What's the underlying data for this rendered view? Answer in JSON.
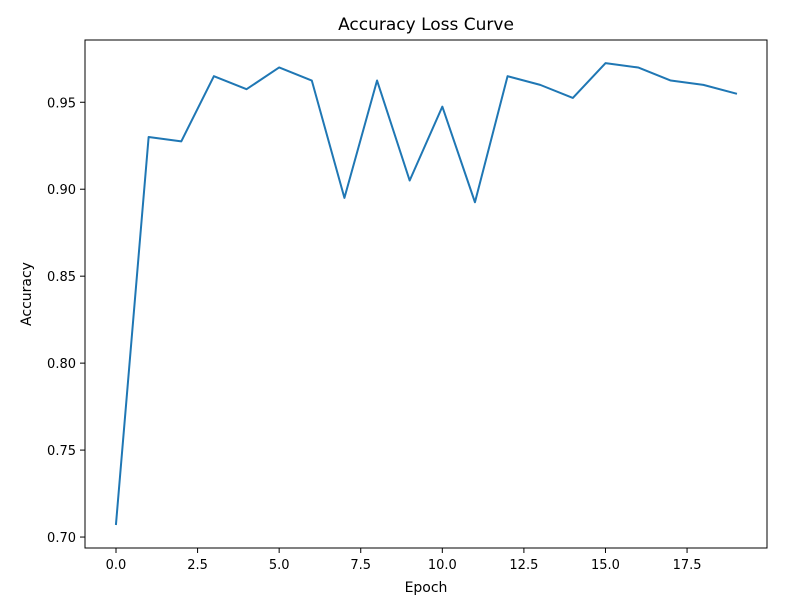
{
  "chart_data": {
    "type": "line",
    "title": "Accuracy Loss Curve",
    "xlabel": "Epoch",
    "ylabel": "Accuracy",
    "xlim": [
      -0.95,
      19.95
    ],
    "ylim": [
      0.6937,
      0.9858
    ],
    "xticks": [
      0.0,
      2.5,
      5.0,
      7.5,
      10.0,
      12.5,
      15.0,
      17.5
    ],
    "xtick_labels": [
      "0.0",
      "2.5",
      "5.0",
      "7.5",
      "10.0",
      "12.5",
      "15.0",
      "17.5"
    ],
    "yticks": [
      0.7,
      0.75,
      0.8,
      0.85,
      0.9,
      0.95
    ],
    "ytick_labels": [
      "0.70",
      "0.75",
      "0.80",
      "0.85",
      "0.90",
      "0.95"
    ],
    "grid": false,
    "legend": false,
    "series": [
      {
        "color": "#1f77b4",
        "x": [
          0,
          1,
          2,
          3,
          4,
          5,
          6,
          7,
          8,
          9,
          10,
          11,
          12,
          13,
          14,
          15,
          16,
          17,
          18,
          19
        ],
        "values": [
          0.7075,
          0.93,
          0.9275,
          0.965,
          0.9575,
          0.97,
          0.9625,
          0.895,
          0.9625,
          0.905,
          0.9475,
          0.8925,
          0.965,
          0.96,
          0.9525,
          0.9725,
          0.97,
          0.9625,
          0.96,
          0.955
        ]
      }
    ]
  }
}
